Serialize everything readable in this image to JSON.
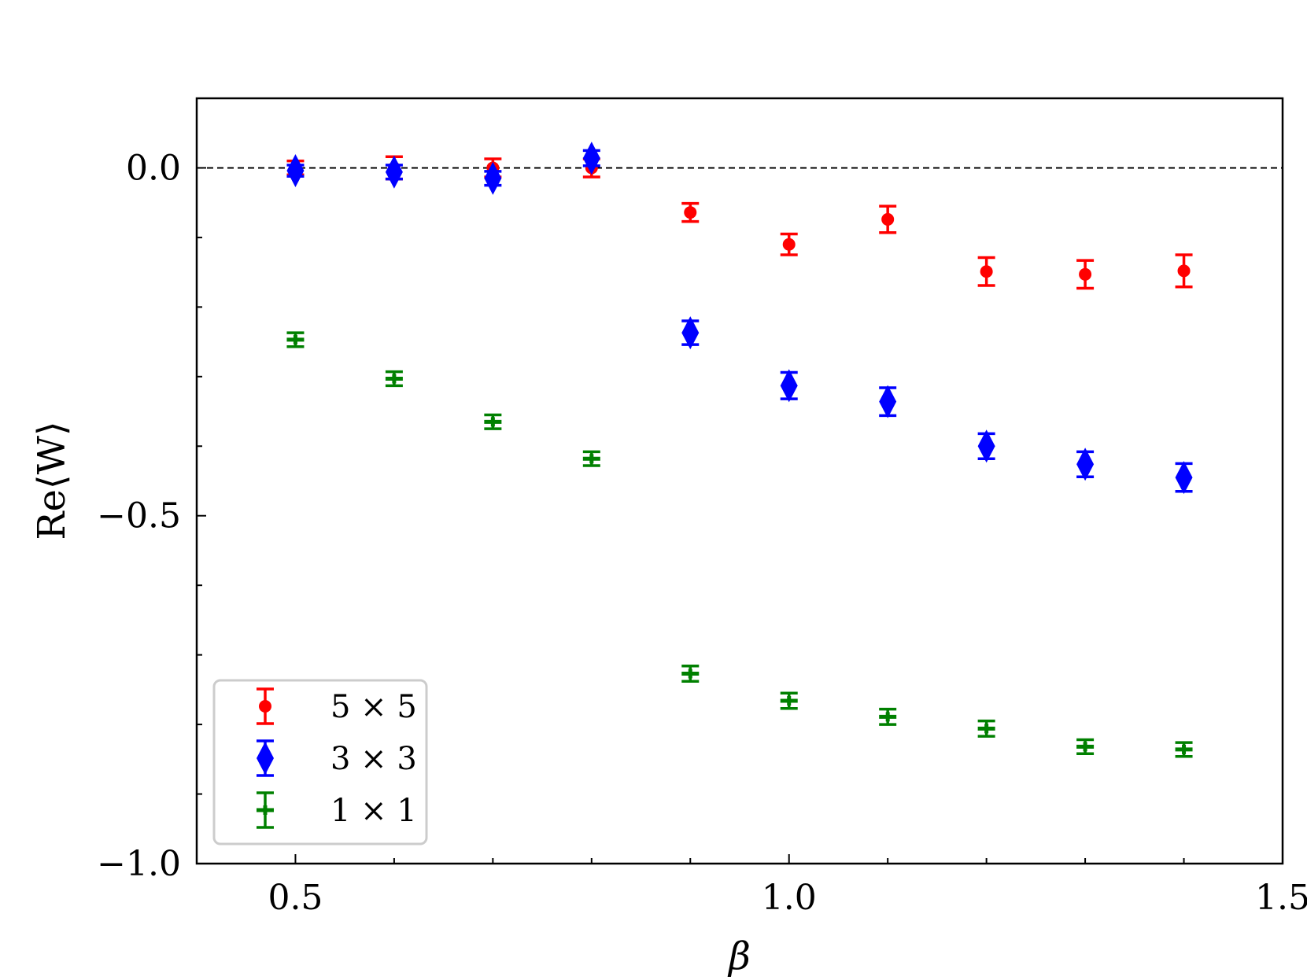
{
  "chart_data": {
    "type": "scatter",
    "xlabel": "β",
    "ylabel": "Re⟨W⟩",
    "xlim": [
      0.4,
      1.5
    ],
    "ylim": [
      -1.0,
      0.1
    ],
    "xticks": [
      0.5,
      1.0,
      1.5
    ],
    "xtick_labels": [
      "0.5",
      "1.0",
      "1.5"
    ],
    "yticks": [
      -1.0,
      -0.5,
      0.0
    ],
    "ytick_labels": [
      "−1.0",
      "−0.5",
      "0.0"
    ],
    "x_minor_ticks": [
      0.6,
      0.7,
      0.8,
      0.9,
      1.1,
      1.2,
      1.3,
      1.4
    ],
    "y_minor_ticks": [
      -0.9,
      -0.8,
      -0.7,
      -0.6,
      -0.4,
      -0.3,
      -0.2,
      -0.1
    ],
    "reference_line": {
      "y": 0.0,
      "style": "dashed",
      "color": "#000000"
    },
    "legend_position": "lower-left",
    "grid": false,
    "series": [
      {
        "name": "5 × 5",
        "color": "#ff0000",
        "marker": "circle",
        "x": [
          0.5,
          0.6,
          0.7,
          0.8,
          0.9,
          1.0,
          1.1,
          1.2,
          1.3,
          1.4
        ],
        "y": [
          0.0,
          0.0,
          0.0,
          0.0,
          -0.064,
          -0.11,
          -0.074,
          -0.149,
          -0.153,
          -0.148
        ],
        "yerr": [
          0.01,
          0.016,
          0.013,
          0.013,
          0.013,
          0.015,
          0.019,
          0.02,
          0.02,
          0.023
        ]
      },
      {
        "name": "3 × 3",
        "color": "#0000ff",
        "marker": "diamond",
        "x": [
          0.5,
          0.6,
          0.7,
          0.8,
          0.9,
          1.0,
          1.1,
          1.2,
          1.3,
          1.4
        ],
        "y": [
          -0.004,
          -0.006,
          -0.015,
          0.014,
          -0.237,
          -0.313,
          -0.336,
          -0.4,
          -0.426,
          -0.445
        ],
        "yerr": [
          0.008,
          0.01,
          0.01,
          0.011,
          0.017,
          0.019,
          0.02,
          0.018,
          0.018,
          0.02
        ]
      },
      {
        "name": "1 × 1",
        "color": "#008000",
        "marker": "plus",
        "x": [
          0.5,
          0.6,
          0.7,
          0.8,
          0.9,
          1.0,
          1.1,
          1.2,
          1.3,
          1.4
        ],
        "y": [
          -0.247,
          -0.303,
          -0.365,
          -0.418,
          -0.727,
          -0.766,
          -0.789,
          -0.806,
          -0.832,
          -0.836
        ],
        "yerr": [
          0.01,
          0.01,
          0.01,
          0.01,
          0.011,
          0.011,
          0.011,
          0.011,
          0.01,
          0.01
        ]
      }
    ]
  }
}
